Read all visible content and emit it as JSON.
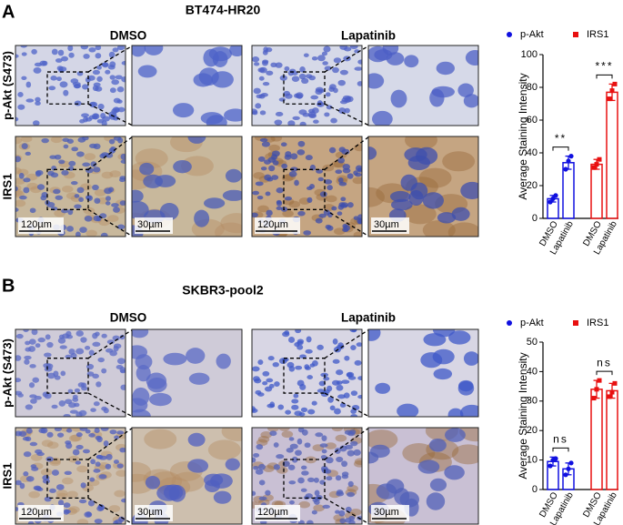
{
  "panels": [
    {
      "label": "A",
      "title": "BT474-HR20",
      "columns": [
        "DMSO",
        "Lapatinib"
      ],
      "rows": [
        "p-Akt (S473)",
        "IRS1"
      ],
      "scale_bars": [
        "120µm",
        "30µm",
        "120µm",
        "30µm"
      ]
    },
    {
      "label": "B",
      "title": "SKBR3-pool2",
      "columns": [
        "DMSO",
        "Lapatinib"
      ],
      "rows": [
        "p-Akt (S473)",
        "IRS1"
      ],
      "scale_bars": [
        "120µm",
        "30µm",
        "120µm",
        "30µm"
      ]
    }
  ],
  "chart_data": [
    {
      "type": "bar",
      "y_label": "Average Staining Intensity",
      "categories": [
        "DMSO",
        "Lapatinib",
        "DMSO",
        "Lapatinib"
      ],
      "ylim": [
        0,
        100
      ],
      "yticks": [
        0,
        20,
        40,
        60,
        80,
        100
      ],
      "series": [
        {
          "name": "p-Akt",
          "color": "#1010e0",
          "marker": "circle",
          "values": [
            12,
            34,
            null,
            null
          ],
          "errors": [
            2,
            4,
            null,
            null
          ],
          "points": [
            [
              10,
              12,
              14
            ],
            [
              30,
              35,
              38
            ],
            null,
            null
          ],
          "annotation": "**"
        },
        {
          "name": "IRS1",
          "color": "#e81010",
          "marker": "square",
          "values": [
            null,
            null,
            33,
            77
          ],
          "errors": [
            null,
            null,
            3,
            5
          ],
          "points": [
            null,
            null,
            [
              31,
              33,
              36
            ],
            [
              73,
              78,
              82
            ]
          ],
          "annotation": "***"
        }
      ]
    },
    {
      "type": "bar",
      "y_label": "Average Staining Intensity",
      "categories": [
        "DMSO",
        "Lapatinib",
        "DMSO",
        "Lapatinib"
      ],
      "ylim": [
        0,
        50
      ],
      "yticks": [
        0,
        10,
        20,
        30,
        40,
        50
      ],
      "series": [
        {
          "name": "p-Akt",
          "color": "#1010e0",
          "marker": "circle",
          "values": [
            9.5,
            7,
            null,
            null
          ],
          "errors": [
            1.5,
            2,
            null,
            null
          ],
          "points": [
            [
              8,
              10,
              10.5
            ],
            [
              5,
              7,
              9
            ],
            null,
            null
          ],
          "annotation": "ns"
        },
        {
          "name": "IRS1",
          "color": "#e81010",
          "marker": "square",
          "values": [
            null,
            null,
            34,
            33.5
          ],
          "errors": [
            null,
            null,
            3,
            2.5
          ],
          "points": [
            null,
            null,
            [
              31,
              34,
              37
            ],
            [
              31.5,
              33,
              36
            ]
          ],
          "annotation": "ns"
        }
      ]
    }
  ]
}
